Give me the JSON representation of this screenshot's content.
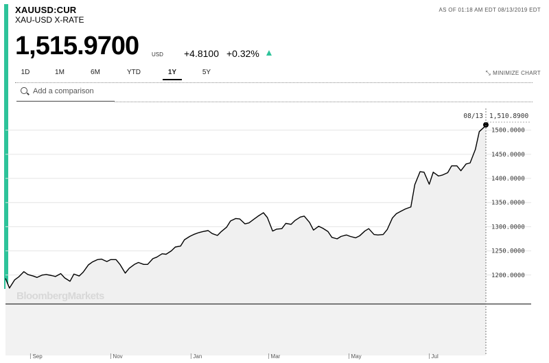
{
  "header": {
    "ticker": "XAUUSD:CUR",
    "subtitle": "XAU-USD X-RATE",
    "asof": "AS OF 01:18 AM EDT 08/13/2019 EDT",
    "price": "1,515.9700",
    "currency": "USD",
    "change": "+4.8100",
    "change_pct": "+0.32%"
  },
  "tabs": [
    "1D",
    "1M",
    "6M",
    "YTD",
    "1Y",
    "5Y"
  ],
  "active_tab": "1Y",
  "minimize_label": "MINIMIZE CHART",
  "search": {
    "placeholder": "Add a comparison"
  },
  "colors": {
    "accent": "#2ec39a",
    "line": "#000000",
    "fill": "#f0f0f0"
  },
  "chart_data": {
    "type": "area",
    "watermark": "BloombergMarkets",
    "tooltip": {
      "date": "08/13",
      "value": "1,510.8900"
    },
    "x_labels": [
      "Sep",
      "Nov",
      "Jan",
      "Mar",
      "May",
      "Jul"
    ],
    "y_ticks": [
      "1200.0000",
      "1250.0000",
      "1300.0000",
      "1350.0000",
      "1400.0000",
      "1450.0000",
      "1500.0000"
    ],
    "ylim": [
      1140,
      1545
    ],
    "x_range": [
      "2018-08-13",
      "2019-08-13"
    ],
    "grid": true,
    "series": [
      {
        "x": [
          "2018-08-13",
          "2018-08-16",
          "2018-08-20",
          "2018-08-23",
          "2018-08-27",
          "2018-08-30",
          "2018-09-03",
          "2018-09-06",
          "2018-09-10",
          "2018-09-13",
          "2018-09-17",
          "2018-09-20",
          "2018-09-24",
          "2018-09-27",
          "2018-10-01",
          "2018-10-04",
          "2018-10-08",
          "2018-10-11",
          "2018-10-15",
          "2018-10-18",
          "2018-10-22",
          "2018-10-25",
          "2018-10-29",
          "2018-11-01",
          "2018-11-05",
          "2018-11-08",
          "2018-11-12",
          "2018-11-15",
          "2018-11-19",
          "2018-11-22",
          "2018-11-26",
          "2018-11-29",
          "2018-12-03",
          "2018-12-06",
          "2018-12-10",
          "2018-12-13",
          "2018-12-17",
          "2018-12-20",
          "2018-12-24",
          "2018-12-27",
          "2018-12-31",
          "2019-01-03",
          "2019-01-07",
          "2019-01-10",
          "2019-01-14",
          "2019-01-17",
          "2019-01-21",
          "2019-01-24",
          "2019-01-28",
          "2019-01-31",
          "2019-02-04",
          "2019-02-07",
          "2019-02-11",
          "2019-02-14",
          "2019-02-18",
          "2019-02-21",
          "2019-02-25",
          "2019-02-28",
          "2019-03-04",
          "2019-03-07",
          "2019-03-11",
          "2019-03-14",
          "2019-03-18",
          "2019-03-21",
          "2019-03-25",
          "2019-03-28",
          "2019-04-01",
          "2019-04-04",
          "2019-04-08",
          "2019-04-11",
          "2019-04-15",
          "2019-04-18",
          "2019-04-22",
          "2019-04-25",
          "2019-04-29",
          "2019-05-02",
          "2019-05-06",
          "2019-05-09",
          "2019-05-13",
          "2019-05-16",
          "2019-05-20",
          "2019-05-23",
          "2019-05-27",
          "2019-05-30",
          "2019-06-03",
          "2019-06-06",
          "2019-06-10",
          "2019-06-13",
          "2019-06-17",
          "2019-06-20",
          "2019-06-24",
          "2019-06-27",
          "2019-07-01",
          "2019-07-04",
          "2019-07-08",
          "2019-07-11",
          "2019-07-15",
          "2019-07-18",
          "2019-07-22",
          "2019-07-25",
          "2019-07-29",
          "2019-08-01",
          "2019-08-05",
          "2019-08-08",
          "2019-08-12",
          "2019-08-13"
        ],
        "y": [
          1193,
          1173,
          1190,
          1196,
          1207,
          1201,
          1198,
          1195,
          1200,
          1201,
          1199,
          1197,
          1203,
          1194,
          1187,
          1202,
          1198,
          1206,
          1221,
          1227,
          1232,
          1233,
          1228,
          1232,
          1232,
          1222,
          1204,
          1214,
          1222,
          1226,
          1222,
          1222,
          1234,
          1237,
          1244,
          1243,
          1250,
          1258,
          1260,
          1273,
          1280,
          1284,
          1288,
          1290,
          1292,
          1286,
          1282,
          1290,
          1299,
          1312,
          1317,
          1316,
          1306,
          1308,
          1316,
          1322,
          1329,
          1319,
          1291,
          1295,
          1296,
          1307,
          1305,
          1313,
          1320,
          1322,
          1309,
          1293,
          1301,
          1297,
          1290,
          1278,
          1275,
          1280,
          1283,
          1280,
          1277,
          1281,
          1291,
          1296,
          1284,
          1283,
          1284,
          1294,
          1318,
          1327,
          1333,
          1337,
          1341,
          1387,
          1414,
          1413,
          1388,
          1413,
          1405,
          1407,
          1412,
          1426,
          1426,
          1416,
          1430,
          1432,
          1460,
          1497,
          1507,
          1511
        ]
      }
    ]
  }
}
